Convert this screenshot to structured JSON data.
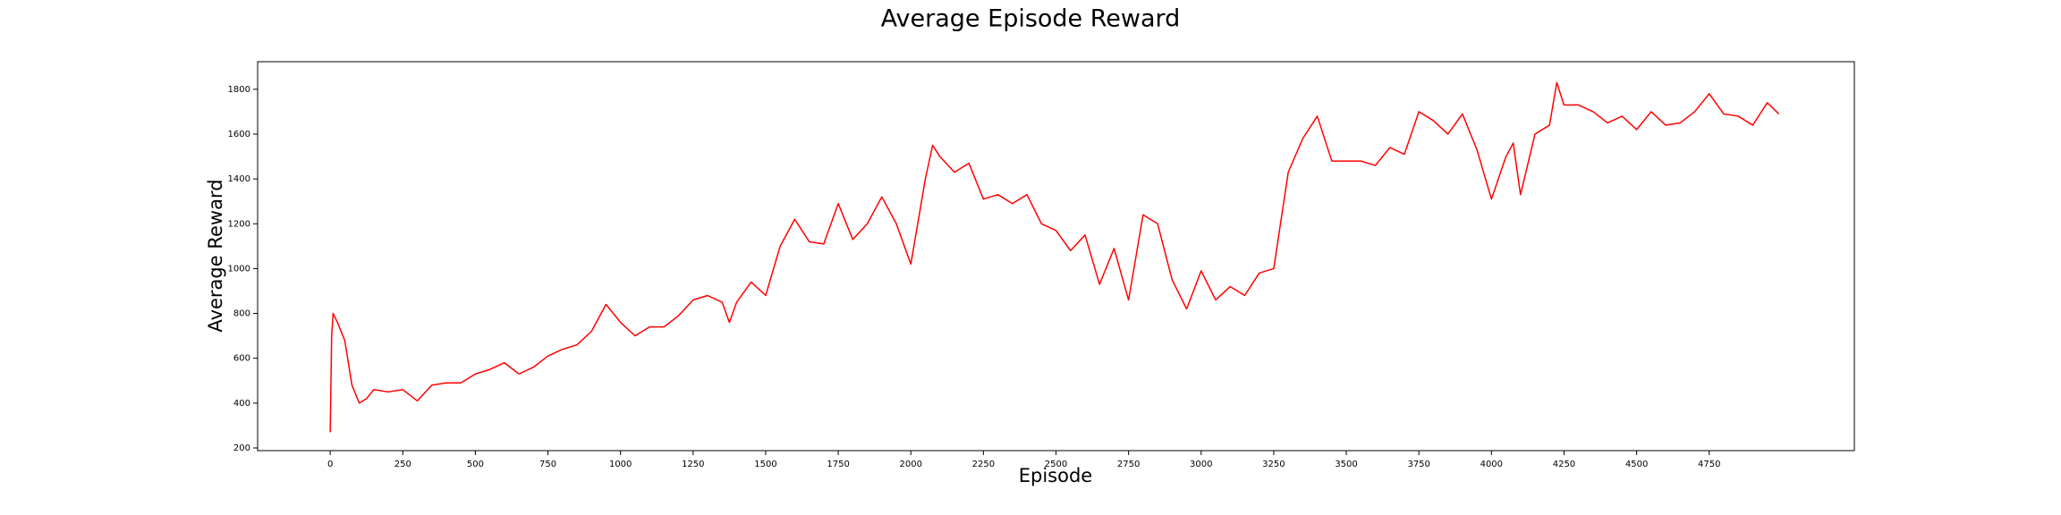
{
  "chart_data": {
    "type": "line",
    "title": "Average Episode Reward",
    "x_label": "Episode",
    "y_label": "Average Reward",
    "color": "#ff0000",
    "x": [
      0,
      5,
      10,
      25,
      50,
      75,
      100,
      125,
      150,
      200,
      250,
      300,
      350,
      400,
      450,
      500,
      550,
      600,
      650,
      700,
      750,
      800,
      850,
      900,
      950,
      1000,
      1050,
      1100,
      1150,
      1200,
      1250,
      1300,
      1350,
      1375,
      1400,
      1450,
      1500,
      1550,
      1600,
      1650,
      1700,
      1750,
      1800,
      1850,
      1900,
      1950,
      2000,
      2050,
      2075,
      2100,
      2150,
      2200,
      2250,
      2300,
      2350,
      2400,
      2450,
      2500,
      2550,
      2600,
      2650,
      2700,
      2750,
      2800,
      2850,
      2900,
      2950,
      3000,
      3050,
      3100,
      3150,
      3200,
      3250,
      3300,
      3350,
      3400,
      3450,
      3500,
      3550,
      3600,
      3650,
      3700,
      3750,
      3800,
      3850,
      3900,
      3950,
      4000,
      4050,
      4075,
      4100,
      4150,
      4200,
      4225,
      4250,
      4300,
      4350,
      4400,
      4450,
      4500,
      4550,
      4600,
      4650,
      4700,
      4750,
      4800,
      4850,
      4900,
      4950,
      4990
    ],
    "values": [
      270,
      700,
      800,
      760,
      680,
      480,
      400,
      420,
      460,
      450,
      460,
      410,
      480,
      490,
      490,
      530,
      550,
      580,
      530,
      560,
      610,
      640,
      660,
      720,
      840,
      760,
      700,
      740,
      740,
      790,
      860,
      880,
      850,
      760,
      850,
      940,
      880,
      1100,
      1220,
      1120,
      1110,
      1290,
      1130,
      1200,
      1320,
      1200,
      1020,
      1400,
      1550,
      1500,
      1430,
      1470,
      1310,
      1330,
      1290,
      1330,
      1200,
      1170,
      1080,
      1150,
      930,
      1090,
      860,
      1240,
      1200,
      950,
      820,
      990,
      860,
      920,
      880,
      980,
      1000,
      1430,
      1580,
      1680,
      1480,
      1480,
      1480,
      1460,
      1540,
      1510,
      1700,
      1660,
      1600,
      1690,
      1530,
      1310,
      1500,
      1560,
      1330,
      1600,
      1640,
      1830,
      1730,
      1730,
      1700,
      1650,
      1680,
      1620,
      1700,
      1640,
      1650,
      1700,
      1780,
      1690,
      1680,
      1640,
      1740,
      1690
    ],
    "xlim": [
      -250,
      5250
    ],
    "ylim": [
      188,
      1923
    ],
    "xticks": [
      0,
      250,
      500,
      750,
      1000,
      1250,
      1500,
      1750,
      2000,
      2250,
      2500,
      2750,
      3000,
      3250,
      3500,
      3750,
      4000,
      4250,
      4500,
      4750
    ],
    "yticks": [
      200,
      400,
      600,
      800,
      1000,
      1200,
      1400,
      1600,
      1800
    ],
    "grid": false
  }
}
